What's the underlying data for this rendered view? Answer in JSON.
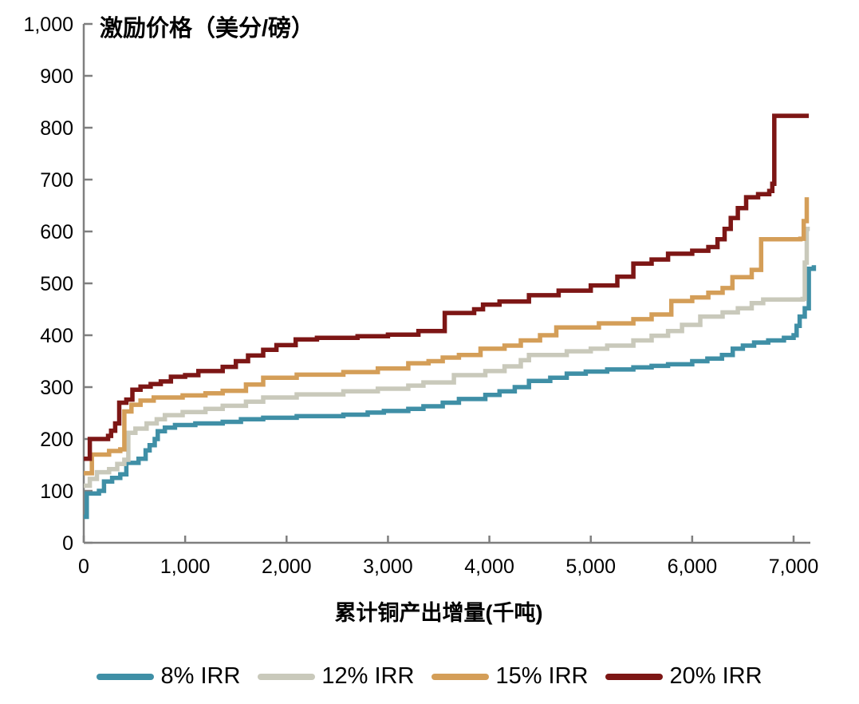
{
  "chart_data": {
    "type": "line",
    "step": true,
    "title": "激励价格（美分/磅）",
    "xlabel": "累计铜产出增量(千吨)",
    "ylabel": "",
    "xlim": [
      0,
      7200
    ],
    "ylim": [
      0,
      1000
    ],
    "grid": false,
    "legend_position": "bottom",
    "axis_color": "#7f7f7f",
    "x_ticks": [
      0,
      1000,
      2000,
      3000,
      4000,
      5000,
      6000,
      7000
    ],
    "x_tick_labels": [
      "0",
      "1,000",
      "2,000",
      "3,000",
      "4,000",
      "5,000",
      "6,000",
      "7,000"
    ],
    "y_ticks": [
      0,
      100,
      200,
      300,
      400,
      500,
      600,
      700,
      800,
      900,
      1000
    ],
    "y_tick_labels": [
      "0",
      "100",
      "200",
      "300",
      "400",
      "500",
      "600",
      "700",
      "800",
      "900",
      "1,000"
    ],
    "series": [
      {
        "name": "8% IRR",
        "color": "#3F8FA6",
        "points": [
          [
            0,
            50
          ],
          [
            30,
            95
          ],
          [
            150,
            100
          ],
          [
            200,
            118
          ],
          [
            280,
            125
          ],
          [
            360,
            132
          ],
          [
            420,
            154
          ],
          [
            540,
            162
          ],
          [
            610,
            178
          ],
          [
            650,
            188
          ],
          [
            700,
            200
          ],
          [
            730,
            215
          ],
          [
            800,
            222
          ],
          [
            900,
            227
          ],
          [
            1100,
            230
          ],
          [
            1370,
            233
          ],
          [
            1550,
            238
          ],
          [
            1770,
            241
          ],
          [
            2100,
            244
          ],
          [
            2560,
            247
          ],
          [
            2800,
            251
          ],
          [
            2960,
            254
          ],
          [
            3200,
            258
          ],
          [
            3350,
            263
          ],
          [
            3540,
            270
          ],
          [
            3700,
            277
          ],
          [
            3960,
            285
          ],
          [
            4100,
            292
          ],
          [
            4250,
            300
          ],
          [
            4390,
            312
          ],
          [
            4600,
            318
          ],
          [
            4763,
            326
          ],
          [
            4950,
            330
          ],
          [
            5162,
            334
          ],
          [
            5420,
            338
          ],
          [
            5600,
            341
          ],
          [
            5762,
            344
          ],
          [
            6000,
            350
          ],
          [
            6150,
            355
          ],
          [
            6294,
            362
          ],
          [
            6400,
            374
          ],
          [
            6500,
            380
          ],
          [
            6611,
            386
          ],
          [
            6750,
            390
          ],
          [
            6905,
            395
          ],
          [
            7000,
            400
          ],
          [
            7030,
            418
          ],
          [
            7060,
            436
          ],
          [
            7110,
            452
          ],
          [
            7150,
            528
          ],
          [
            7200,
            535
          ]
        ]
      },
      {
        "name": "12% IRR",
        "color": "#C9C9BB",
        "points": [
          [
            0,
            110
          ],
          [
            60,
            123
          ],
          [
            130,
            136
          ],
          [
            250,
            142
          ],
          [
            330,
            152
          ],
          [
            400,
            160
          ],
          [
            440,
            212
          ],
          [
            510,
            220
          ],
          [
            620,
            230
          ],
          [
            720,
            238
          ],
          [
            800,
            246
          ],
          [
            975,
            252
          ],
          [
            1200,
            258
          ],
          [
            1370,
            264
          ],
          [
            1600,
            272
          ],
          [
            1770,
            280
          ],
          [
            2100,
            286
          ],
          [
            2560,
            292
          ],
          [
            2900,
            297
          ],
          [
            3200,
            303
          ],
          [
            3350,
            309
          ],
          [
            3650,
            323
          ],
          [
            3960,
            331
          ],
          [
            4150,
            340
          ],
          [
            4310,
            352
          ],
          [
            4390,
            362
          ],
          [
            4763,
            369
          ],
          [
            5000,
            374
          ],
          [
            5162,
            380
          ],
          [
            5420,
            390
          ],
          [
            5600,
            399
          ],
          [
            5762,
            408
          ],
          [
            5900,
            420
          ],
          [
            6080,
            436
          ],
          [
            6300,
            444
          ],
          [
            6450,
            452
          ],
          [
            6587,
            462
          ],
          [
            6700,
            469
          ],
          [
            7090,
            470
          ],
          [
            7110,
            540
          ],
          [
            7130,
            605
          ],
          [
            7160,
            605
          ]
        ]
      },
      {
        "name": "15% IRR",
        "color": "#D49E58",
        "points": [
          [
            0,
            134
          ],
          [
            80,
            170
          ],
          [
            250,
            177
          ],
          [
            360,
            180
          ],
          [
            400,
            253
          ],
          [
            470,
            266
          ],
          [
            560,
            274
          ],
          [
            690,
            280
          ],
          [
            975,
            284
          ],
          [
            1200,
            288
          ],
          [
            1370,
            293
          ],
          [
            1600,
            305
          ],
          [
            1770,
            318
          ],
          [
            2100,
            324
          ],
          [
            2560,
            329
          ],
          [
            2900,
            336
          ],
          [
            3200,
            346
          ],
          [
            3400,
            350
          ],
          [
            3540,
            357
          ],
          [
            3700,
            362
          ],
          [
            3913,
            374
          ],
          [
            4150,
            380
          ],
          [
            4310,
            390
          ],
          [
            4500,
            400
          ],
          [
            4660,
            415
          ],
          [
            5080,
            423
          ],
          [
            5420,
            431
          ],
          [
            5600,
            440
          ],
          [
            5794,
            466
          ],
          [
            6000,
            473
          ],
          [
            6159,
            482
          ],
          [
            6300,
            491
          ],
          [
            6397,
            512
          ],
          [
            6587,
            526
          ],
          [
            6680,
            585
          ],
          [
            7067,
            586
          ],
          [
            7100,
            620
          ],
          [
            7130,
            666
          ]
        ]
      },
      {
        "name": "20% IRR",
        "color": "#7D1615",
        "points": [
          [
            0,
            162
          ],
          [
            60,
            200
          ],
          [
            240,
            206
          ],
          [
            270,
            216
          ],
          [
            310,
            230
          ],
          [
            350,
            270
          ],
          [
            420,
            276
          ],
          [
            480,
            295
          ],
          [
            560,
            301
          ],
          [
            660,
            306
          ],
          [
            760,
            311
          ],
          [
            860,
            320
          ],
          [
            1000,
            323
          ],
          [
            1130,
            331
          ],
          [
            1370,
            339
          ],
          [
            1500,
            350
          ],
          [
            1620,
            361
          ],
          [
            1770,
            372
          ],
          [
            1900,
            381
          ],
          [
            2090,
            392
          ],
          [
            2300,
            395
          ],
          [
            2700,
            398
          ],
          [
            3000,
            401
          ],
          [
            3300,
            408
          ],
          [
            3560,
            443
          ],
          [
            3850,
            450
          ],
          [
            3937,
            459
          ],
          [
            4100,
            465
          ],
          [
            4390,
            477
          ],
          [
            4683,
            486
          ],
          [
            5000,
            496
          ],
          [
            5262,
            513
          ],
          [
            5420,
            538
          ],
          [
            5600,
            546
          ],
          [
            5762,
            557
          ],
          [
            6000,
            563
          ],
          [
            6159,
            570
          ],
          [
            6250,
            585
          ],
          [
            6320,
            605
          ],
          [
            6380,
            626
          ],
          [
            6450,
            645
          ],
          [
            6532,
            666
          ],
          [
            6650,
            672
          ],
          [
            6760,
            678
          ],
          [
            6790,
            692
          ],
          [
            6810,
            823
          ],
          [
            7150,
            823
          ]
        ]
      }
    ]
  }
}
